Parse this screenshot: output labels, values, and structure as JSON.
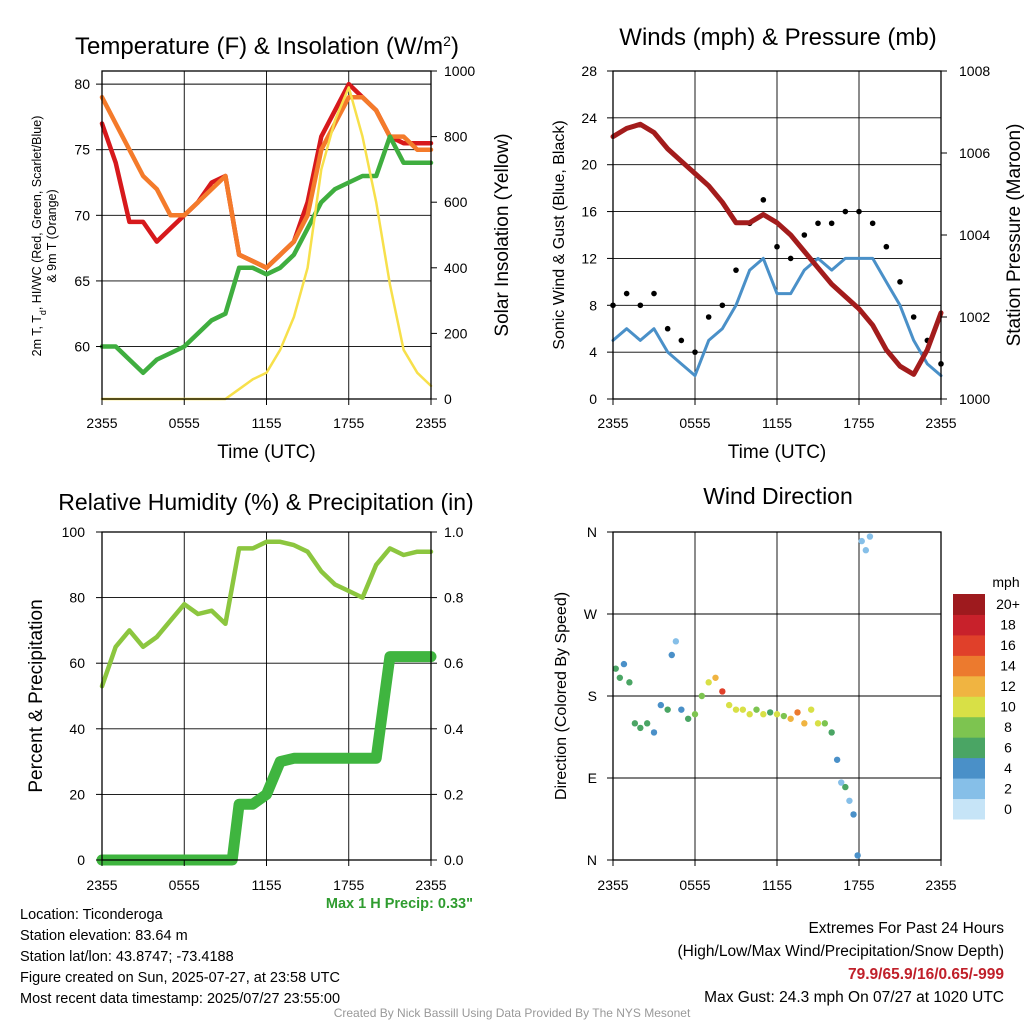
{
  "chart_data": [
    {
      "type": "line",
      "title": "Temperature (F) & Insolation (W/m²)",
      "xlabel": "Time (UTC)",
      "ylabel_left": "2m T, Td, HI/WC (Red, Green, Scarlet/Blue) & 9m T (Orange)",
      "ylabel_right": "Solar Insolation (Yellow)",
      "x_ticks": [
        "2355",
        "0555",
        "1155",
        "1755",
        "2355"
      ],
      "ylim_left": [
        56,
        81
      ],
      "yticks_left": [
        60,
        65,
        70,
        75,
        80
      ],
      "ylim_right": [
        0,
        1000
      ],
      "yticks_right": [
        0,
        200,
        400,
        600,
        800,
        1000
      ],
      "grid": true,
      "series": [
        {
          "name": "2m T",
          "color": "#d7191c",
          "axis": "left",
          "x_hours": [
            0,
            1,
            2,
            3,
            4,
            5,
            6,
            7,
            8,
            9,
            10,
            11,
            12,
            13,
            14,
            15,
            16,
            17,
            18,
            19,
            20,
            21,
            22,
            23,
            24
          ],
          "values": [
            77,
            74,
            69.5,
            69.5,
            68,
            69,
            70,
            71,
            72.5,
            73,
            67,
            66.5,
            66,
            67,
            68,
            71,
            76,
            78,
            80,
            79,
            78,
            76,
            75.5,
            75.5,
            75.5
          ]
        },
        {
          "name": "9m T",
          "color": "#f47b2b",
          "axis": "left",
          "x_hours": [
            0,
            1,
            2,
            3,
            4,
            5,
            6,
            7,
            8,
            9,
            10,
            11,
            12,
            13,
            14,
            15,
            16,
            17,
            18,
            19,
            20,
            21,
            22,
            23,
            24
          ],
          "values": [
            79,
            77,
            75,
            73,
            72,
            70,
            70,
            71,
            72,
            73,
            67,
            66.5,
            66,
            67,
            68,
            70,
            75,
            77,
            79,
            79,
            78,
            76,
            76,
            75,
            75
          ]
        },
        {
          "name": "Td",
          "color": "#3fae3f",
          "axis": "left",
          "x_hours": [
            0,
            1,
            2,
            3,
            4,
            5,
            6,
            7,
            8,
            9,
            10,
            11,
            12,
            13,
            14,
            15,
            16,
            17,
            18,
            19,
            20,
            21,
            22,
            23,
            24
          ],
          "values": [
            60,
            60,
            59,
            58,
            59,
            59.5,
            60,
            61,
            62,
            62.5,
            66,
            66,
            65.5,
            66,
            67,
            69,
            71,
            72,
            72.5,
            73,
            73,
            76,
            74,
            74,
            74
          ]
        },
        {
          "name": "Solar",
          "color": "#f7e04b",
          "axis": "right",
          "x_hours": [
            0,
            1,
            2,
            3,
            4,
            5,
            6,
            7,
            8,
            9,
            10,
            11,
            12,
            13,
            14,
            15,
            16,
            17,
            18,
            19,
            20,
            21,
            22,
            23,
            24
          ],
          "values": [
            0,
            0,
            0,
            0,
            0,
            0,
            0,
            0,
            0,
            0,
            30,
            60,
            80,
            150,
            250,
            400,
            700,
            850,
            950,
            800,
            600,
            350,
            150,
            80,
            40
          ]
        }
      ]
    },
    {
      "type": "line",
      "title": "Winds (mph) & Pressure (mb)",
      "xlabel": "Time (UTC)",
      "ylabel_left": "Sonic Wind & Gust (Blue, Black)",
      "ylabel_right": "Station Pressure (Maroon)",
      "x_ticks": [
        "2355",
        "0555",
        "1155",
        "1755",
        "2355"
      ],
      "ylim_left": [
        0,
        28
      ],
      "yticks_left": [
        0,
        4,
        8,
        12,
        16,
        20,
        24,
        28
      ],
      "ylim_right": [
        1000,
        1008
      ],
      "yticks_right": [
        1000,
        1002,
        1004,
        1006,
        1008
      ],
      "grid": true,
      "series": [
        {
          "name": "Sonic Wind",
          "color": "#4a90c8",
          "axis": "left",
          "x_hours": [
            0,
            1,
            2,
            3,
            4,
            5,
            6,
            7,
            8,
            9,
            10,
            11,
            12,
            13,
            14,
            15,
            16,
            17,
            18,
            19,
            20,
            21,
            22,
            23,
            24
          ],
          "values": [
            5,
            6,
            5,
            6,
            4,
            3,
            2,
            5,
            6,
            8,
            11,
            12,
            9,
            9,
            11,
            12,
            11,
            12,
            12,
            12,
            10,
            8,
            5,
            3,
            2
          ]
        },
        {
          "name": "Gust",
          "color": "#000000",
          "axis": "left",
          "x_hours": [
            0,
            1,
            2,
            3,
            4,
            5,
            6,
            7,
            8,
            9,
            10,
            11,
            12,
            13,
            14,
            15,
            16,
            17,
            18,
            19,
            20,
            21,
            22,
            23,
            24
          ],
          "values": [
            8,
            9,
            8,
            9,
            6,
            5,
            4,
            7,
            8,
            11,
            15,
            17,
            13,
            12,
            14,
            15,
            15,
            16,
            16,
            15,
            13,
            10,
            7,
            5,
            3
          ]
        },
        {
          "name": "Pressure",
          "color": "#a31c1c",
          "axis": "right",
          "x_hours": [
            0,
            1,
            2,
            3,
            4,
            5,
            6,
            7,
            8,
            9,
            10,
            11,
            12,
            13,
            14,
            15,
            16,
            17,
            18,
            19,
            20,
            21,
            22,
            23,
            24
          ],
          "values": [
            1006.4,
            1006.6,
            1006.7,
            1006.5,
            1006.1,
            1005.8,
            1005.5,
            1005.2,
            1004.8,
            1004.3,
            1004.3,
            1004.5,
            1004.3,
            1004.0,
            1003.6,
            1003.2,
            1002.8,
            1002.5,
            1002.2,
            1001.8,
            1001.2,
            1000.8,
            1000.6,
            1001.2,
            1002.1
          ]
        }
      ]
    },
    {
      "type": "line",
      "title": "Relative Humidity (%) & Precipitation (in)",
      "xlabel": "",
      "ylabel_left": "Percent & Precipitation",
      "x_ticks": [
        "2355",
        "0555",
        "1155",
        "1755",
        "2355"
      ],
      "ylim_left": [
        0,
        100
      ],
      "yticks_left": [
        0,
        20,
        40,
        60,
        80,
        100
      ],
      "ylim_right": [
        0,
        1.0
      ],
      "yticks_right": [
        0.0,
        0.2,
        0.4,
        0.6,
        0.8,
        1.0
      ],
      "grid": true,
      "series": [
        {
          "name": "RH",
          "color": "#8cc63f",
          "axis": "left",
          "x_hours": [
            0,
            1,
            2,
            3,
            4,
            5,
            6,
            7,
            8,
            9,
            10,
            11,
            12,
            13,
            14,
            15,
            16,
            17,
            18,
            19,
            20,
            21,
            22,
            23,
            24
          ],
          "values": [
            53,
            65,
            70,
            65,
            68,
            73,
            78,
            75,
            76,
            72,
            95,
            95,
            97,
            97,
            96,
            94,
            88,
            84,
            82,
            80,
            90,
            95,
            93,
            94,
            94
          ]
        },
        {
          "name": "Precip",
          "color": "#3fb53f",
          "axis": "right",
          "x_hours": [
            0,
            2,
            4,
            6,
            8,
            9.5,
            10,
            11,
            12,
            13,
            14,
            15,
            16,
            17,
            18,
            19,
            20,
            21,
            22,
            23,
            24
          ],
          "values": [
            0,
            0,
            0,
            0,
            0,
            0,
            0.17,
            0.17,
            0.2,
            0.3,
            0.31,
            0.31,
            0.31,
            0.31,
            0.31,
            0.31,
            0.31,
            0.62,
            0.62,
            0.62,
            0.62
          ]
        }
      ]
    },
    {
      "type": "scatter",
      "title": "Wind Direction",
      "ylabel": "Direction (Colored By Speed)",
      "x_ticks": [
        "2355",
        "0555",
        "1155",
        "1755",
        "2355"
      ],
      "y_ticks": [
        "N",
        "E",
        "S",
        "W",
        "N"
      ],
      "colorbar_title": "mph",
      "colorbar_labels": [
        "0",
        "2",
        "4",
        "6",
        "8",
        "10",
        "12",
        "14",
        "16",
        "18",
        "20+"
      ],
      "colorbar_colors": [
        "#c6e4f7",
        "#86bfe8",
        "#4a90c8",
        "#4aa564",
        "#7dc450",
        "#d8e046",
        "#f0b441",
        "#ec7a2e",
        "#e0402a",
        "#c8212b",
        "#9e1a1e"
      ],
      "points": [
        {
          "x_hours": 0.2,
          "dir": 210,
          "speed": 6
        },
        {
          "x_hours": 0.5,
          "dir": 200,
          "speed": 5
        },
        {
          "x_hours": 0.8,
          "dir": 215,
          "speed": 4
        },
        {
          "x_hours": 1.2,
          "dir": 195,
          "speed": 6
        },
        {
          "x_hours": 1.6,
          "dir": 150,
          "speed": 5
        },
        {
          "x_hours": 2.0,
          "dir": 145,
          "speed": 6
        },
        {
          "x_hours": 2.5,
          "dir": 150,
          "speed": 5
        },
        {
          "x_hours": 3.0,
          "dir": 140,
          "speed": 4
        },
        {
          "x_hours": 3.5,
          "dir": 170,
          "speed": 3
        },
        {
          "x_hours": 4.0,
          "dir": 165,
          "speed": 5
        },
        {
          "x_hours": 4.3,
          "dir": 225,
          "speed": 3
        },
        {
          "x_hours": 4.6,
          "dir": 240,
          "speed": 2
        },
        {
          "x_hours": 5.0,
          "dir": 165,
          "speed": 4
        },
        {
          "x_hours": 5.5,
          "dir": 155,
          "speed": 6
        },
        {
          "x_hours": 6.0,
          "dir": 160,
          "speed": 8
        },
        {
          "x_hours": 6.5,
          "dir": 180,
          "speed": 8
        },
        {
          "x_hours": 7.0,
          "dir": 195,
          "speed": 10
        },
        {
          "x_hours": 7.5,
          "dir": 200,
          "speed": 12
        },
        {
          "x_hours": 8.0,
          "dir": 185,
          "speed": 16
        },
        {
          "x_hours": 8.5,
          "dir": 170,
          "speed": 9
        },
        {
          "x_hours": 9.0,
          "dir": 165,
          "speed": 10
        },
        {
          "x_hours": 9.5,
          "dir": 165,
          "speed": 9
        },
        {
          "x_hours": 10.0,
          "dir": 160,
          "speed": 10
        },
        {
          "x_hours": 10.5,
          "dir": 165,
          "speed": 8
        },
        {
          "x_hours": 11.0,
          "dir": 160,
          "speed": 10
        },
        {
          "x_hours": 11.5,
          "dir": 162,
          "speed": 6
        },
        {
          "x_hours": 12.0,
          "dir": 160,
          "speed": 10
        },
        {
          "x_hours": 12.5,
          "dir": 158,
          "speed": 8
        },
        {
          "x_hours": 13.0,
          "dir": 155,
          "speed": 12
        },
        {
          "x_hours": 13.5,
          "dir": 162,
          "speed": 14
        },
        {
          "x_hours": 14.0,
          "dir": 150,
          "speed": 12
        },
        {
          "x_hours": 14.5,
          "dir": 165,
          "speed": 10
        },
        {
          "x_hours": 15.0,
          "dir": 150,
          "speed": 10
        },
        {
          "x_hours": 15.5,
          "dir": 150,
          "speed": 8
        },
        {
          "x_hours": 16.0,
          "dir": 140,
          "speed": 6
        },
        {
          "x_hours": 16.4,
          "dir": 110,
          "speed": 4
        },
        {
          "x_hours": 16.7,
          "dir": 85,
          "speed": 2
        },
        {
          "x_hours": 17.0,
          "dir": 80,
          "speed": 5
        },
        {
          "x_hours": 17.3,
          "dir": 65,
          "speed": 2
        },
        {
          "x_hours": 17.6,
          "dir": 50,
          "speed": 4
        },
        {
          "x_hours": 17.9,
          "dir": 5,
          "speed": 3
        },
        {
          "x_hours": 18.2,
          "dir": 350,
          "speed": 2
        },
        {
          "x_hours": 18.5,
          "dir": 340,
          "speed": 1
        },
        {
          "x_hours": 18.8,
          "dir": 355,
          "speed": 2
        }
      ]
    }
  ],
  "texts": {
    "temp_title_main": "Temperature (F) & Insolation (W/m",
    "temp_title_sup": "2",
    "temp_title_end": ")",
    "temp_ylabel_line1": "2m T, T",
    "temp_ylabel_d": "d",
    "temp_ylabel_rest": ", HI/WC (Red, Green, Scarlet/Blue)",
    "temp_ylabel_line2": "& 9m T (Orange)",
    "max_precip": "Max 1 H Precip: 0.33\""
  },
  "info": {
    "location": "Location: Ticonderoga",
    "elevation": "Station elevation: 83.64 m",
    "latlon": "Station lat/lon: 43.8747; -73.4188",
    "created": "Figure created on Sun, 2025-07-27, at 23:58 UTC",
    "recent": "Most recent data timestamp: 2025/07/27 23:55:00"
  },
  "extremes": {
    "heading": "Extremes For Past 24 Hours",
    "subheading": "(High/Low/Max Wind/Precipitation/Snow Depth)",
    "values": "79.9/65.9/16/0.65/-999",
    "gust": "Max Gust: 24.3 mph On 07/27 at 1020 UTC"
  },
  "credit": "Created By Nick Bassill Using Data Provided By The NYS Mesonet"
}
